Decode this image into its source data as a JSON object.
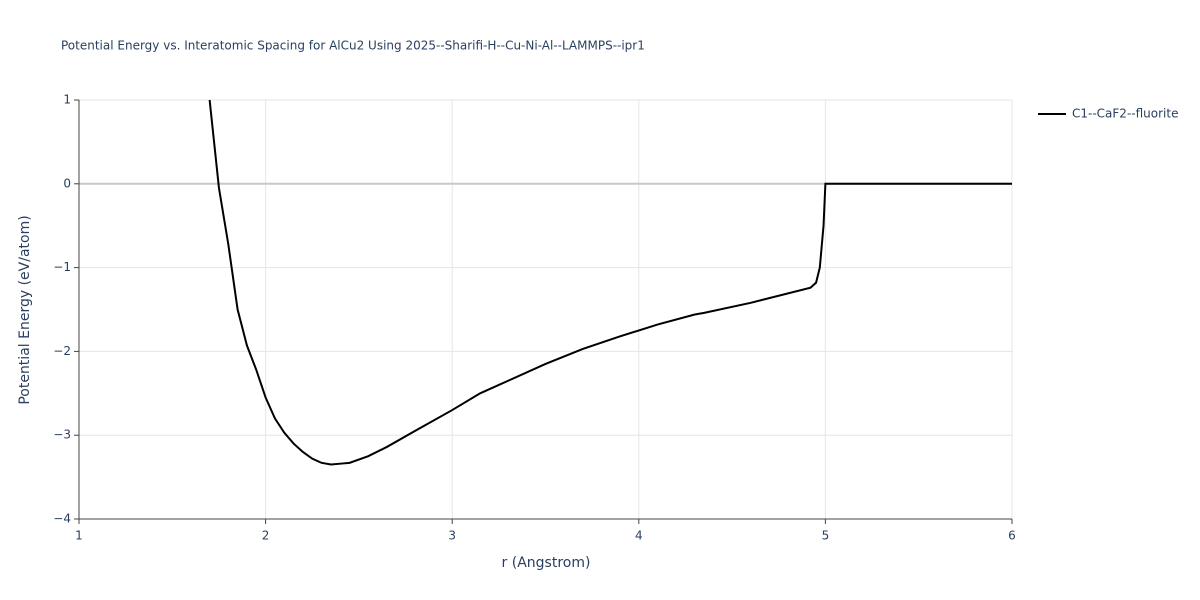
{
  "chart_data": {
    "type": "line",
    "title": "Potential Energy vs. Interatomic Spacing for AlCu2 Using 2025--Sharifi-H--Cu-Ni-Al--LAMMPS--ipr1",
    "x_label": "r (Angstrom)",
    "y_label": "Potential Energy (eV/atom)",
    "x": [
      1.7,
      1.75,
      1.8,
      1.85,
      1.9,
      1.95,
      2.0,
      2.05,
      2.1,
      2.15,
      2.2,
      2.25,
      2.3,
      2.35,
      2.4,
      2.45,
      2.55,
      2.65,
      2.8,
      3.0,
      3.15,
      3.3,
      3.5,
      3.7,
      3.9,
      4.1,
      4.3,
      4.35,
      4.6,
      4.92,
      4.95,
      4.97,
      4.99,
      5.0,
      6.0
    ],
    "series": [
      {
        "name": "C1--CaF2--fluorite",
        "color": "#000000",
        "values": [
          1.0,
          -0.05,
          -0.72,
          -1.5,
          -1.93,
          -2.22,
          -2.55,
          -2.8,
          -2.97,
          -3.1,
          -3.2,
          -3.28,
          -3.33,
          -3.35,
          -3.34,
          -3.33,
          -3.25,
          -3.14,
          -2.95,
          -2.7,
          -2.5,
          -2.35,
          -2.15,
          -1.97,
          -1.82,
          -1.68,
          -1.56,
          -1.54,
          -1.42,
          -1.24,
          -1.18,
          -1.0,
          -0.5,
          0.0,
          0.0
        ]
      }
    ],
    "xlim": [
      1,
      6
    ],
    "xticks": [
      1,
      2,
      3,
      4,
      5,
      6
    ],
    "ylim": [
      -4,
      1
    ],
    "yticks": [
      {
        "value": -4,
        "label": "−4"
      },
      {
        "value": -3,
        "label": "−3"
      },
      {
        "value": -2,
        "label": "−2"
      },
      {
        "value": -1,
        "label": "−1"
      },
      0,
      1
    ],
    "grid": true,
    "legend": "top-right"
  }
}
